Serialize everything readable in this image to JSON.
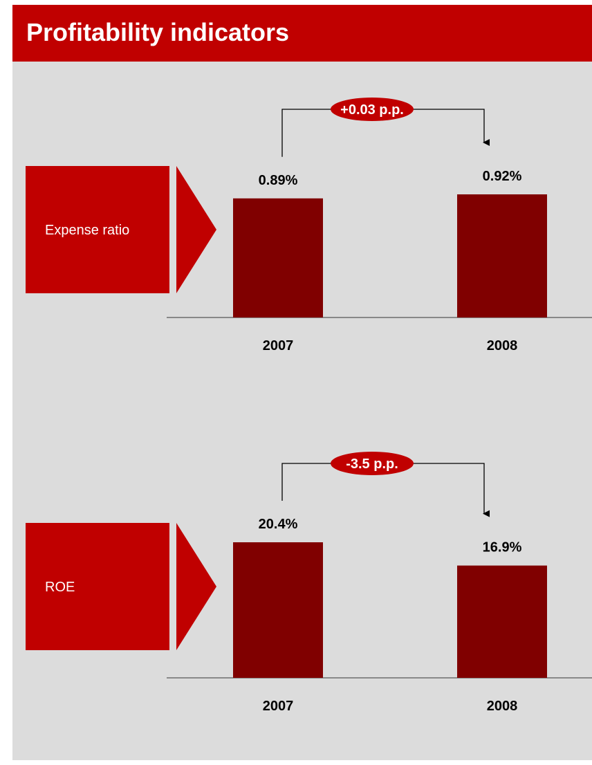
{
  "page": {
    "title": "Profitability indicators"
  },
  "colors": {
    "header": "#c00000",
    "background": "#dcdcdc",
    "label_box": "#c00000",
    "bar": "#800000",
    "badge": "#c00000",
    "text": "#000000"
  },
  "chart_data": [
    {
      "type": "bar",
      "label": "Expense ratio",
      "categories": [
        "2007",
        "2008"
      ],
      "values": [
        0.89,
        0.92
      ],
      "value_labels": [
        "0.89%",
        "0.92%"
      ],
      "change_label": "+0.03 p.p."
    },
    {
      "type": "bar",
      "label": "ROE",
      "categories": [
        "2007",
        "2008"
      ],
      "values": [
        20.4,
        16.9
      ],
      "value_labels": [
        "20.4%",
        "16.9%"
      ],
      "change_label": "-3.5 p.p."
    }
  ]
}
